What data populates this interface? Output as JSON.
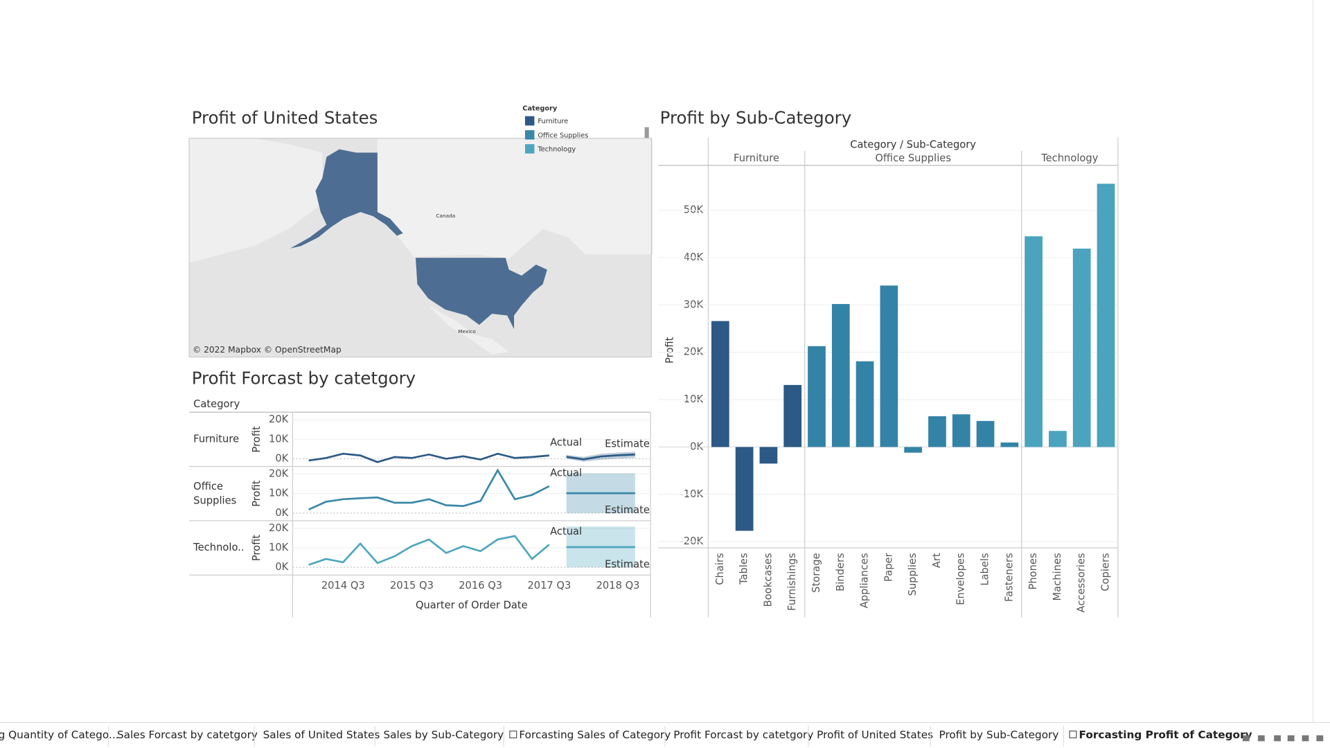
{
  "chart_data": [
    {
      "type": "map",
      "title": "Profit of United States",
      "legend_title": "Category",
      "legend": [
        {
          "name": "Furniture",
          "color": "#2c5985"
        },
        {
          "name": "Office Supplies",
          "color": "#3a88a8"
        },
        {
          "name": "Technology",
          "color": "#4ea6be"
        }
      ],
      "region_color": "#4e6d92",
      "place_labels": [
        "Canada",
        "Mexico"
      ],
      "attribution": "© 2022 Mapbox © OpenStreetMap"
    },
    {
      "type": "line",
      "title": "Profit Forcast by catetgory",
      "row_header": "Category",
      "x": [
        null,
        null,
        "2014 Q3",
        null,
        null,
        null,
        "2015 Q3",
        null,
        null,
        null,
        "2016 Q3",
        null,
        null,
        null,
        "2017 Q3",
        null,
        null,
        null,
        "2018 Q3",
        null
      ],
      "xlabel": "Quarter of Order Date",
      "ylabel": "Profit",
      "annotations": [
        "Actual",
        "Estimate"
      ],
      "ylim": [
        -3500,
        23500
      ],
      "yticks": [
        {
          "value": 0,
          "label": "0K"
        },
        {
          "value": 10000,
          "label": "10K"
        },
        {
          "value": 20000,
          "label": "20K"
        }
      ],
      "rows": [
        {
          "name": "Furniture",
          "color": "#2c5985",
          "values": [
            -900,
            400,
            2600,
            1700,
            -1700,
            900,
            400,
            2200,
            0,
            1300,
            -400,
            2600,
            400,
            900,
            1700,
            null,
            null,
            null,
            null,
            null
          ],
          "estimate": [
            null,
            null,
            null,
            null,
            null,
            null,
            null,
            null,
            null,
            null,
            null,
            null,
            null,
            null,
            null,
            1000,
            -300,
            1200,
            1800,
            2200
          ],
          "lower": [
            null,
            null,
            null,
            null,
            null,
            null,
            null,
            null,
            null,
            null,
            null,
            null,
            null,
            null,
            null,
            0,
            -1500,
            -500,
            0,
            500
          ],
          "upper": [
            null,
            null,
            null,
            null,
            null,
            null,
            null,
            null,
            null,
            null,
            null,
            null,
            null,
            null,
            null,
            2000,
            1000,
            2600,
            3200,
            3600
          ]
        },
        {
          "name": "Office Supplies",
          "color": "#3a88a8",
          "values": [
            1800,
            5800,
            7100,
            7600,
            8000,
            5300,
            5300,
            7100,
            4000,
            3600,
            6200,
            22000,
            7100,
            9300,
            13800,
            null,
            null,
            null,
            null,
            null
          ],
          "estimate": [
            null,
            null,
            null,
            null,
            null,
            null,
            null,
            null,
            null,
            null,
            null,
            null,
            null,
            null,
            null,
            10200,
            10200,
            10200,
            10200,
            10200
          ],
          "lower": [
            null,
            null,
            null,
            null,
            null,
            null,
            null,
            null,
            null,
            null,
            null,
            null,
            null,
            null,
            null,
            0,
            0,
            0,
            0,
            0
          ],
          "upper": [
            null,
            null,
            null,
            null,
            null,
            null,
            null,
            null,
            null,
            null,
            null,
            null,
            null,
            null,
            null,
            20400,
            20400,
            20400,
            20400,
            20400
          ]
        },
        {
          "name": "Technolo..",
          "color": "#4ea6be",
          "values": [
            1300,
            4300,
            2600,
            12200,
            2200,
            5700,
            10900,
            14300,
            7400,
            10900,
            8300,
            14300,
            16100,
            4300,
            11700,
            null,
            null,
            null,
            null,
            null
          ],
          "estimate": [
            null,
            null,
            null,
            null,
            null,
            null,
            null,
            null,
            null,
            null,
            null,
            null,
            null,
            null,
            null,
            10400,
            10400,
            10400,
            10400,
            10400
          ],
          "lower": [
            null,
            null,
            null,
            null,
            null,
            null,
            null,
            null,
            null,
            null,
            null,
            null,
            null,
            null,
            null,
            0,
            0,
            0,
            0,
            0
          ],
          "upper": [
            null,
            null,
            null,
            null,
            null,
            null,
            null,
            null,
            null,
            null,
            null,
            null,
            null,
            null,
            null,
            20900,
            20900,
            20900,
            20900,
            20900
          ]
        }
      ]
    },
    {
      "type": "bar",
      "title": "Profit by Sub-Category",
      "header": "Category / Sub-Category",
      "ylabel": "Profit",
      "grid": true,
      "ylim": [
        -21300,
        59300
      ],
      "yticks": [
        {
          "value": -20000,
          "label": "-20K"
        },
        {
          "value": -10000,
          "label": "-10K"
        },
        {
          "value": 0,
          "label": "0K"
        },
        {
          "value": 10000,
          "label": "10K"
        },
        {
          "value": 20000,
          "label": "20K"
        },
        {
          "value": 30000,
          "label": "30K"
        },
        {
          "value": 40000,
          "label": "40K"
        },
        {
          "value": 50000,
          "label": "50K"
        }
      ],
      "groups": [
        {
          "name": "Furniture",
          "color": "#2c5985",
          "categories": [
            "Chairs",
            "Tables",
            "Bookcases",
            "Furnishings"
          ],
          "values": [
            26600,
            -17700,
            -3500,
            13100
          ]
        },
        {
          "name": "Office Supplies",
          "color": "#3383a6",
          "categories": [
            "Storage",
            "Binders",
            "Appliances",
            "Paper",
            "Supplies",
            "Art",
            "Envelopes",
            "Labels",
            "Fasteners"
          ],
          "values": [
            21300,
            30200,
            18100,
            34100,
            -1200,
            6500,
            6900,
            5500,
            950
          ]
        },
        {
          "name": "Technology",
          "color": "#4ba3bd",
          "categories": [
            "Phones",
            "Machines",
            "Accessories",
            "Copiers"
          ],
          "values": [
            44500,
            3400,
            41900,
            55600
          ]
        }
      ]
    }
  ],
  "tabs": [
    "g Quantity of Catego...",
    "Sales Forcast by catetgory",
    "Sales of United States",
    "Sales by Sub-Category",
    "Forcasting Sales of Category",
    "Profit Forcast by catetgory",
    "Profit of United States",
    "Profit by Sub-Category",
    "Forcasting Profit of Category"
  ],
  "active_tab": 8
}
